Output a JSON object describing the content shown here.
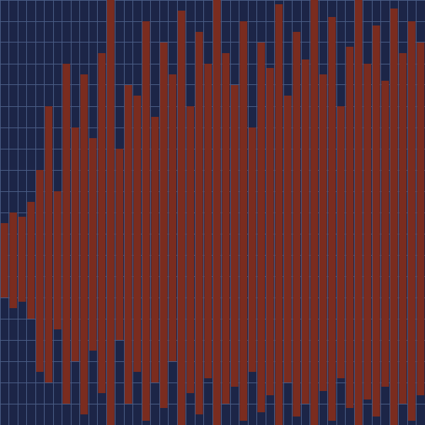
{
  "chart_data": {
    "type": "bar",
    "categories": [
      null,
      null,
      null,
      null,
      null,
      null,
      null,
      null,
      null,
      null,
      null,
      null,
      null,
      null,
      null,
      null,
      null,
      null,
      null,
      null,
      null,
      null,
      null,
      null,
      null,
      null,
      null,
      null,
      null,
      null,
      null,
      null,
      null,
      null,
      null,
      null,
      null,
      null,
      null,
      null,
      null,
      null,
      null,
      null,
      null,
      null,
      null,
      null
    ],
    "values": [
      [
        -20,
        15
      ],
      [
        -25,
        20
      ],
      [
        -22,
        18
      ],
      [
        -30,
        25
      ],
      [
        -55,
        40
      ],
      [
        -60,
        70
      ],
      [
        -35,
        30
      ],
      [
        -70,
        90
      ],
      [
        -50,
        60
      ],
      [
        -75,
        85
      ],
      [
        -45,
        55
      ],
      [
        -65,
        95
      ],
      [
        -80,
        120
      ],
      [
        -40,
        50
      ],
      [
        -70,
        80
      ],
      [
        -55,
        75
      ],
      [
        -78,
        110
      ],
      [
        -60,
        65
      ],
      [
        -72,
        100
      ],
      [
        -50,
        85
      ],
      [
        -80,
        115
      ],
      [
        -65,
        70
      ],
      [
        -75,
        105
      ],
      [
        -58,
        90
      ],
      [
        -80,
        120
      ],
      [
        -70,
        95
      ],
      [
        -62,
        80
      ],
      [
        -78,
        110
      ],
      [
        -55,
        60
      ],
      [
        -74,
        100
      ],
      [
        -66,
        88
      ],
      [
        -80,
        118
      ],
      [
        -60,
        75
      ],
      [
        -76,
        105
      ],
      [
        -70,
        92
      ],
      [
        -80,
        120
      ],
      [
        -64,
        85
      ],
      [
        -78,
        112
      ],
      [
        -58,
        70
      ],
      [
        -72,
        98
      ],
      [
        -80,
        120
      ],
      [
        -68,
        90
      ],
      [
        -76,
        108
      ],
      [
        -62,
        82
      ],
      [
        -80,
        116
      ],
      [
        -70,
        95
      ],
      [
        -78,
        110
      ],
      [
        -66,
        100
      ]
    ],
    "color": "#7a2c1f",
    "ylim": [
      -80,
      120
    ],
    "yticks": [
      -80,
      -70,
      -60,
      -50,
      -40,
      -30,
      -20,
      -10,
      0,
      10,
      20,
      30,
      40,
      50,
      60,
      70,
      80,
      90,
      100,
      110,
      120
    ],
    "grid": true,
    "tick_labels": false
  }
}
